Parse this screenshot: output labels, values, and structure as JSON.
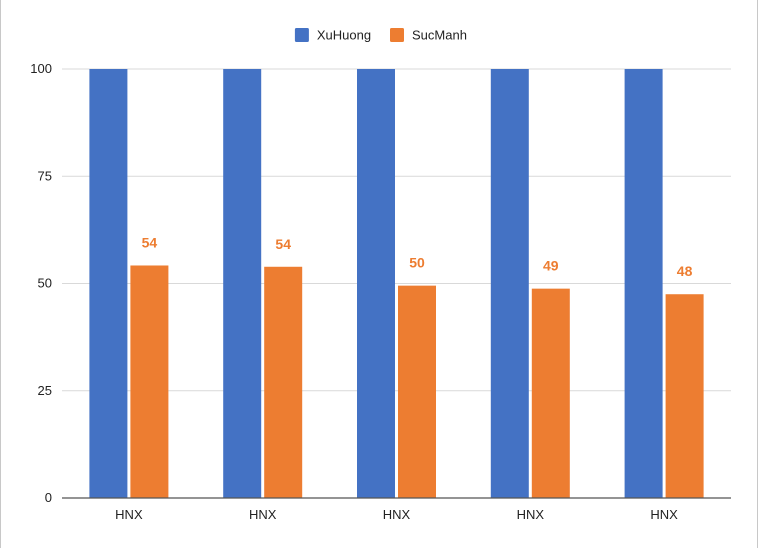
{
  "chart_data": {
    "type": "bar",
    "title": "",
    "xlabel": "",
    "ylabel": "",
    "categories": [
      "HNX",
      "HNX",
      "HNX",
      "HNX",
      "HNX"
    ],
    "series": [
      {
        "name": "XuHuong",
        "values": [
          100,
          100,
          100,
          100,
          100
        ],
        "color": "#4472C4",
        "show_labels": false
      },
      {
        "name": "SucManh",
        "values": [
          54.2,
          53.9,
          49.5,
          48.8,
          47.5
        ],
        "labels": [
          "54",
          "54",
          "50",
          "49",
          "48"
        ],
        "color": "#ED7D31",
        "show_labels": true
      }
    ],
    "ylim": [
      0,
      100
    ],
    "yticks": [
      0,
      25,
      50,
      75,
      100
    ],
    "grid": true,
    "legend": "top-center"
  }
}
